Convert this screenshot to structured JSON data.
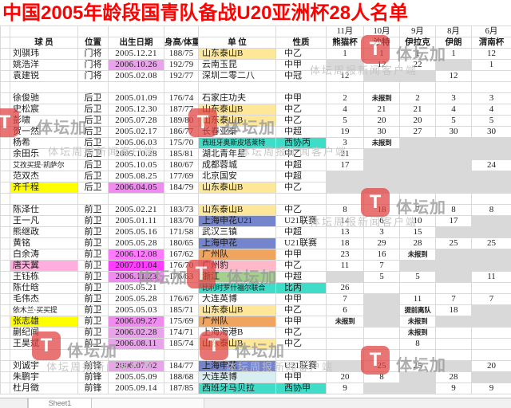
{
  "title": "中国2005年龄段国青队备战U20亚洲杯28人名单",
  "watermark": {
    "brand": "体坛加",
    "sub": "体坛周报新闻客户端",
    "logo_glyph": "T",
    "logo_color": "#e14040"
  },
  "sheet_tab": "Sheet1",
  "colors": {
    "yellow": "#ffe799",
    "bryellow": "#ffff00",
    "cyan": "#3fdcc8",
    "blue": "#7484cd",
    "orange": "#f0a45e",
    "green": "#a5d08c",
    "pinkname": "#ffaede",
    "pinkclub": "#ffb9c9",
    "palecyan": "#d8eef0",
    "plum": "#e8a4e8",
    "med": "#ee8dee",
    "hot": "#ff7aff",
    "vivid": "#ff3dff",
    "gray": "#d9d9d9"
  },
  "table": {
    "left_headers": [
      "球  员",
      "位置",
      "出生日期",
      "身高/体重",
      "单  位",
      "性质"
    ],
    "months": [
      {
        "month": "11月",
        "event": "熊猫杯"
      },
      {
        "month": "10月",
        "event": "沙特"
      },
      {
        "month": "9月",
        "event": "伊拉克"
      },
      {
        "month": "8月",
        "event": "伊朗"
      },
      {
        "month": "6月",
        "event": "渭南杯"
      }
    ],
    "rows": [
      {
        "name": "刘骐玮",
        "pos": "门将",
        "dob": "2005.12.21",
        "hw": "188/75",
        "club": "山东泰山B",
        "club_bg": "yellow",
        "nat": "中乙",
        "m": [
          [
            "1",
            ""
          ],
          [
            "1",
            ""
          ],
          [
            "1",
            ""
          ],
          [
            "1",
            ""
          ],
          [
            "12",
            ""
          ]
        ]
      },
      {
        "name": "姚浩洋",
        "pos": "门将",
        "dob": "2006.10.26",
        "dob_bg": "plum",
        "hw": "192/79",
        "club": "云南玉昆",
        "nat": "中甲",
        "m": [
          [
            "",
            "gray"
          ],
          [
            "12",
            ""
          ],
          [
            "22",
            ""
          ],
          [
            "",
            "gray"
          ],
          [
            "1",
            ""
          ]
        ]
      },
      {
        "name": "袁建锐",
        "pos": "门将",
        "dob": "2005.02.08",
        "hw": "192/77",
        "club": "深圳二零二八",
        "nat": "中冠",
        "m": [
          [
            "12",
            ""
          ],
          [
            "",
            "gray"
          ],
          [
            "",
            "gray"
          ],
          [
            "12",
            ""
          ],
          [
            "",
            ""
          ]
        ]
      },
      {
        "spacer": true
      },
      {
        "name": "徐俊驰",
        "pos": "后卫",
        "dob": "2005.01.09",
        "hw": "176/74",
        "club": "石家庄功夫",
        "nat": "中甲",
        "m": [
          [
            "2",
            ""
          ],
          [
            "未报到",
            ""
          ],
          [
            "2",
            ""
          ],
          [
            "3",
            ""
          ],
          [
            "3",
            ""
          ]
        ]
      },
      {
        "name": "史松宸",
        "pos": "后卫",
        "dob": "2005.12.30",
        "hw": "187/77",
        "club": "山东泰山B",
        "club_bg": "yellow",
        "nat": "中乙",
        "m": [
          [
            "4",
            ""
          ],
          [
            "21",
            ""
          ],
          [
            "21",
            ""
          ],
          [
            "4",
            ""
          ],
          [
            "4",
            ""
          ]
        ]
      },
      {
        "name": "彭啸",
        "pos": "后卫",
        "dob": "2005.07.28",
        "hw": "189/80",
        "club": "山东泰山B",
        "club_bg": "yellow",
        "nat": "中乙",
        "m": [
          [
            "5",
            ""
          ],
          [
            "20",
            ""
          ],
          [
            "20",
            ""
          ],
          [
            "5",
            ""
          ],
          [
            "5",
            ""
          ]
        ]
      },
      {
        "name": "贺一然",
        "pos": "后卫",
        "dob": "2005.02.17",
        "hw": "186/77",
        "club": "长春亚泰",
        "nat": "中超",
        "m": [
          [
            "19",
            ""
          ],
          [
            "30",
            ""
          ],
          [
            "27",
            ""
          ],
          [
            "30",
            ""
          ],
          [
            "30",
            ""
          ]
        ]
      },
      {
        "name": "杨希",
        "pos": "后卫",
        "dob": "2005.06.03",
        "hw": "175/70",
        "club": "西班牙奥斯皮塔莱特",
        "club_bg": "cyan",
        "nat": "西协丙",
        "nat_bg": "cyan",
        "m": [
          [
            "3",
            ""
          ],
          [
            "未报到",
            ""
          ],
          [
            "",
            "gray"
          ],
          [
            "",
            "gray"
          ],
          [
            "",
            "gray"
          ]
        ]
      },
      {
        "name": "余田乐",
        "pos": "后卫",
        "dob": "2005.10.28",
        "hw": "185/81",
        "club": "湖北青年星",
        "nat": "中乙",
        "m": [
          [
            "21",
            ""
          ],
          [
            "",
            "gray"
          ],
          [
            "",
            "gray"
          ],
          [
            "",
            "gray"
          ],
          [
            "",
            "gray"
          ]
        ]
      },
      {
        "name": "艾孜买提·凯萨尔",
        "pos": "后卫",
        "dob": "2005.10.05",
        "hw": "180/67",
        "club": "成都蓉城",
        "nat": "中超",
        "m": [
          [
            "17",
            ""
          ],
          [
            "",
            "gray"
          ],
          [
            "",
            "gray"
          ],
          [
            "",
            "gray"
          ],
          [
            "24",
            ""
          ]
        ]
      },
      {
        "name": "范双杰",
        "pos": "后卫",
        "dob": "2005.08.25",
        "hw": "177/69",
        "club": "北京国安",
        "nat": "中超",
        "m": [
          [
            "",
            "gray"
          ],
          [
            "",
            "gray"
          ],
          [
            "",
            "gray"
          ],
          [
            "",
            "gray"
          ],
          [
            "",
            "gray"
          ]
        ]
      },
      {
        "name": "齐千程",
        "name_bg": "bryellow",
        "pos": "后卫",
        "dob": "2006.04.05",
        "dob_bg": "med",
        "hw": "184/79",
        "club": "山东泰山B",
        "club_bg": "yellow",
        "nat": "中乙",
        "m": [
          [
            "",
            "gray"
          ],
          [
            "",
            "gray"
          ],
          [
            "",
            "gray"
          ],
          [
            "",
            "gray"
          ],
          [
            "",
            "gray"
          ]
        ]
      },
      {
        "spacer": true
      },
      {
        "name": "陈泽仕",
        "pos": "前卫",
        "dob": "2005.02.21",
        "hw": "183/73",
        "club": "山东泰山B",
        "club_bg": "yellow",
        "nat": "中乙",
        "m": [
          [
            "8",
            ""
          ],
          [
            "18",
            ""
          ],
          [
            "7",
            ""
          ],
          [
            "8",
            ""
          ],
          [
            "8",
            ""
          ]
        ]
      },
      {
        "name": "王一凡",
        "pos": "前卫",
        "dob": "2005.01.11",
        "hw": "183/70",
        "club": "上海申花U21",
        "club_bg": "blue",
        "nat": "U21联赛",
        "m": [
          [
            "14",
            ""
          ],
          [
            "6",
            ""
          ],
          [
            "10",
            ""
          ],
          [
            "17",
            ""
          ],
          [
            "",
            "gray"
          ]
        ]
      },
      {
        "name": "熊继政",
        "pos": "前卫",
        "dob": "2005.05.16",
        "hw": "171/58",
        "club": "武汉三镇",
        "nat": "中超",
        "m": [
          [
            "13",
            ""
          ],
          [
            "3",
            ""
          ],
          [
            "15",
            ""
          ],
          [
            "",
            "gray"
          ],
          [
            "",
            "gray"
          ]
        ]
      },
      {
        "name": "黄铭",
        "pos": "前卫",
        "dob": "2005.05.28",
        "hw": "180/65",
        "club": "上海申花",
        "club_bg": "blue",
        "nat": "U21联赛",
        "m": [
          [
            "18",
            ""
          ],
          [
            "29",
            ""
          ],
          [
            "28",
            ""
          ],
          [
            "25",
            ""
          ],
          [
            "25",
            ""
          ]
        ]
      },
      {
        "name": "白余涛",
        "pos": "前卫",
        "dob": "2006.12.08",
        "dob_bg": "hot",
        "hw": "167/62",
        "club": "广州队",
        "club_bg": "orange",
        "nat": "中甲",
        "m": [
          [
            "23",
            ""
          ],
          [
            "16",
            ""
          ],
          [
            "未报到",
            ""
          ],
          [
            "",
            "gray"
          ],
          [
            "",
            "gray"
          ]
        ]
      },
      {
        "name": "唐天翼",
        "name_bg": "pinkname",
        "pos": "前卫",
        "dob": "2007.01.04",
        "dob_bg": "vivid",
        "hw": "176/70",
        "club": "广州豹",
        "club_bg": "pinkclub",
        "nat": "中乙",
        "m": [
          [
            "11",
            ""
          ],
          [
            "7",
            ""
          ],
          [
            "",
            "gray"
          ],
          [
            "",
            "gray"
          ],
          [
            "",
            "gray"
          ]
        ]
      },
      {
        "name": "王钰栋",
        "pos": "前卫",
        "dob": "2006.11.23",
        "dob_bg": "med",
        "hw": "176/63",
        "club": "浙江",
        "club_bg": "green",
        "nat": "中超",
        "m": [
          [
            "",
            "gray"
          ],
          [
            "5",
            ""
          ],
          [
            "5",
            ""
          ],
          [
            "",
            "gray"
          ],
          [
            "11",
            ""
          ]
        ]
      },
      {
        "name": "陈仕晗",
        "pos": "前卫",
        "dob": "2005.05.21",
        "hw": "",
        "club": "比利时罗什福尔联合",
        "club_bg": "cyan",
        "nat": "比丙",
        "nat_bg": "cyan",
        "m": [
          [
            "26",
            ""
          ],
          [
            "",
            ""
          ],
          [
            "",
            ""
          ],
          [
            "",
            ""
          ],
          [
            "",
            ""
          ]
        ]
      },
      {
        "name": "毛伟杰",
        "pos": "前卫",
        "dob": "2005.05.28",
        "hw": "176/67",
        "club": "大连英博",
        "nat": "中甲",
        "m": [
          [
            "7",
            ""
          ],
          [
            "",
            "gray"
          ],
          [
            "11",
            ""
          ],
          [
            "7",
            ""
          ],
          [
            "7",
            ""
          ]
        ]
      },
      {
        "name": "依木兰·买买提",
        "pos": "前卫",
        "dob": "2005.05.03",
        "hw": "185/71",
        "club": "山东泰山B",
        "club_bg": "yellow",
        "nat": "中乙",
        "m": [
          [
            "6",
            ""
          ],
          [
            "",
            "gray"
          ],
          [
            "提前离队",
            ""
          ],
          [
            "18",
            ""
          ],
          [
            "",
            "gray"
          ]
        ]
      },
      {
        "name": "张志雄",
        "name_bg": "bryellow",
        "pos": "前卫",
        "dob": "2006.09.27",
        "dob_bg": "med",
        "hw": "175/69",
        "club": "广州队",
        "club_bg": "orange",
        "nat": "中甲",
        "m": [
          [
            "未报到",
            ""
          ],
          [
            "",
            "gray"
          ],
          [
            "未报到",
            ""
          ],
          [
            "",
            "gray"
          ],
          [
            "",
            "gray"
          ]
        ]
      },
      {
        "name": "蒯纪闻",
        "pos": "前卫",
        "dob": "2006.02.28",
        "dob_bg": "plum",
        "hw": "174/71",
        "club": "上海海港B",
        "nat": "中乙",
        "m": [
          [
            "",
            ""
          ],
          [
            "",
            ""
          ],
          [
            "未报到",
            ""
          ],
          [
            "",
            ""
          ],
          [
            "",
            ""
          ]
        ]
      },
      {
        "name": "王昊斌",
        "pos": "前卫",
        "dob": "2006.08.11",
        "dob_bg": "plum",
        "hw": "185/74",
        "club": "山东泰山B",
        "club_bg": "yellow",
        "nat": "中乙",
        "m": [
          [
            "",
            ""
          ],
          [
            "",
            ""
          ],
          [
            "8",
            ""
          ],
          [
            "",
            ""
          ],
          [
            "",
            ""
          ]
        ]
      },
      {
        "spacer": true
      },
      {
        "name": "刘诚宇",
        "pos": "前锋",
        "dob": "2006.07.02",
        "dob_bg": "plum",
        "hw": "184/77",
        "club": "上海申花",
        "club_bg": "blue",
        "nat": "U21联赛",
        "m": [
          [
            "",
            "gray"
          ],
          [
            "25",
            ""
          ],
          [
            "25",
            ""
          ],
          [
            "",
            "gray"
          ],
          [
            "20",
            ""
          ]
        ]
      },
      {
        "name": "朱鹏宇",
        "pos": "前锋",
        "dob": "2005.05.09",
        "hw": "188/68",
        "club": "大连英博",
        "club_bg": "palecyan",
        "nat": "中甲",
        "m": [
          [
            "20",
            ""
          ],
          [
            "8",
            ""
          ],
          [
            "",
            "gray"
          ],
          [
            "28",
            ""
          ],
          [
            "",
            "gray"
          ]
        ]
      },
      {
        "name": "杜月徵",
        "pos": "前锋",
        "dob": "2005.09.14",
        "hw": "187/85",
        "club": "西班牙马贝拉",
        "club_bg": "cyan",
        "nat": "西协甲",
        "nat_bg": "cyan",
        "m": [
          [
            "9",
            ""
          ],
          [
            "",
            "gray"
          ],
          [
            "",
            "gray"
          ],
          [
            "9",
            ""
          ],
          [
            "9",
            ""
          ]
        ]
      }
    ]
  }
}
